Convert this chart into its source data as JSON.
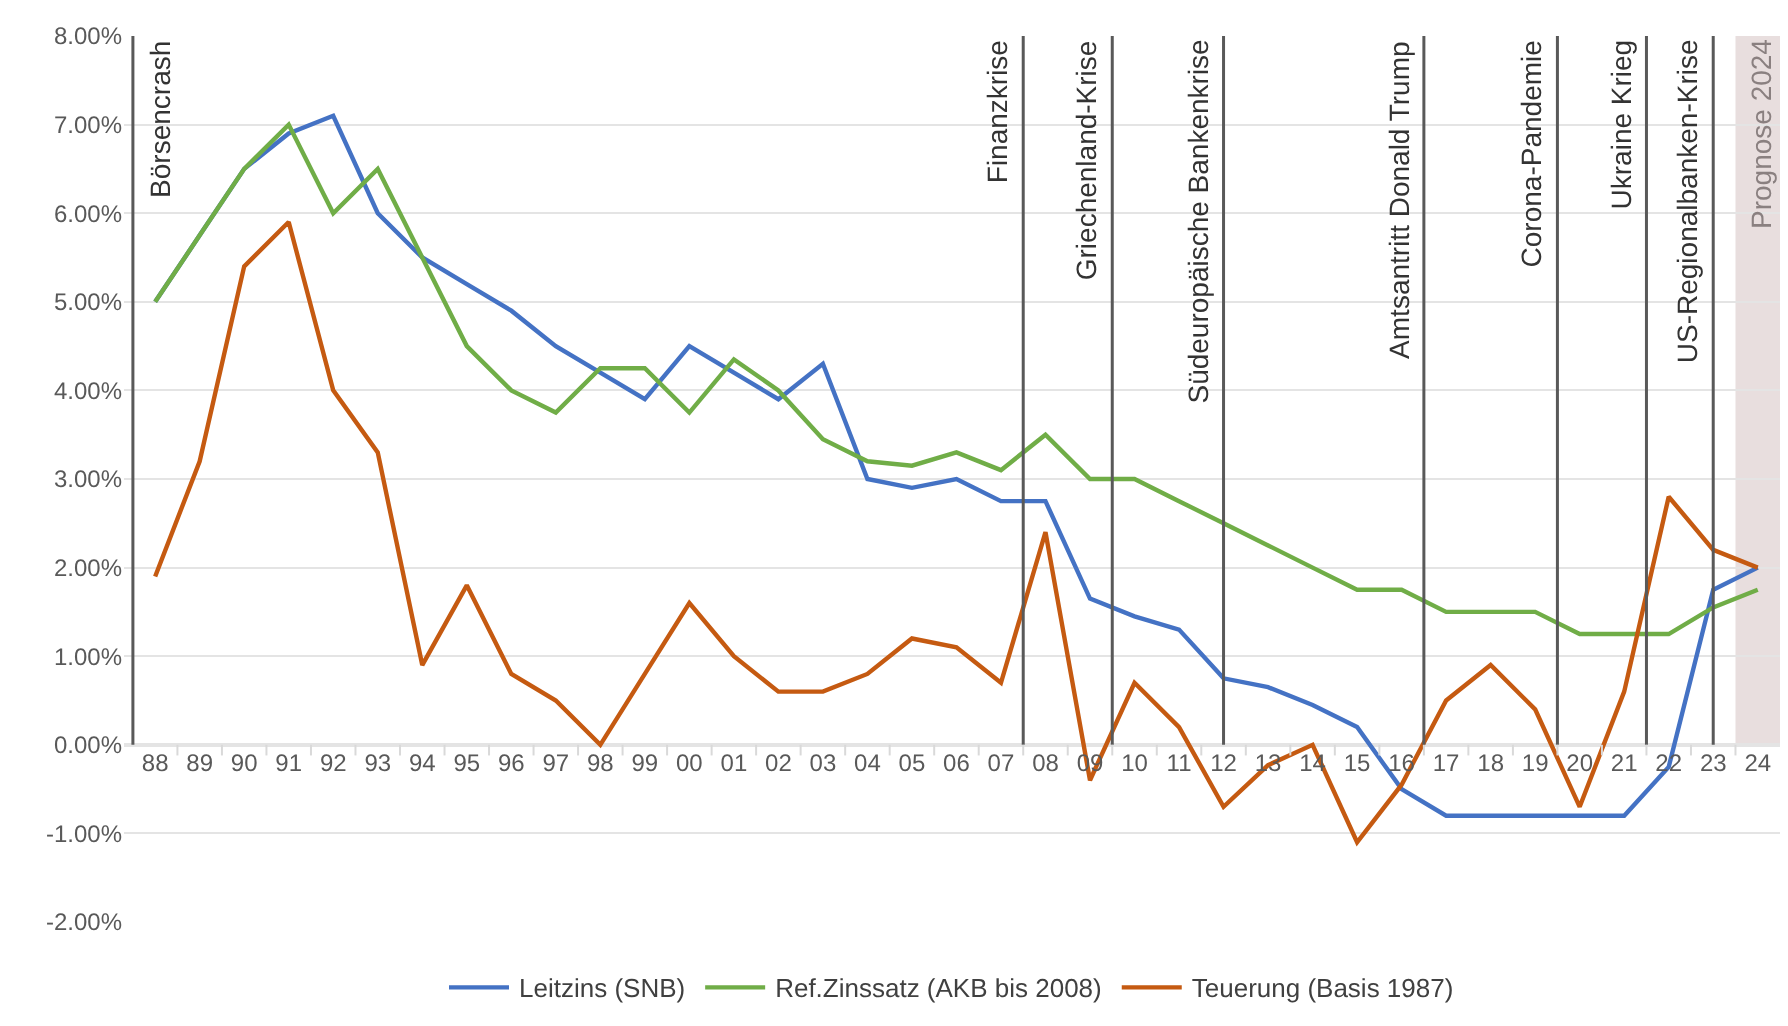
{
  "chart_data": {
    "type": "line",
    "x": [
      1988,
      1989,
      1990,
      1991,
      1992,
      1993,
      1994,
      1995,
      1996,
      1997,
      1998,
      1999,
      2000,
      2001,
      2002,
      2003,
      2004,
      2005,
      2006,
      2007,
      2008,
      2009,
      2010,
      2011,
      2012,
      2013,
      2014,
      2015,
      2016,
      2017,
      2018,
      2019,
      2020,
      2021,
      2022,
      2023,
      2024
    ],
    "series": [
      {
        "name": "Leitzins (SNB)",
        "color": "#4472c4",
        "values": [
          5.0,
          5.75,
          6.5,
          6.9,
          7.1,
          6.0,
          5.5,
          5.2,
          4.9,
          4.5,
          4.2,
          3.9,
          4.5,
          4.2,
          3.9,
          4.3,
          3.0,
          2.9,
          3.0,
          2.75,
          2.75,
          1.65,
          1.45,
          1.3,
          0.75,
          0.65,
          0.45,
          0.2,
          -0.5,
          -0.8,
          -0.8,
          -0.8,
          -0.8,
          -0.8,
          -0.25,
          1.75,
          2.0
        ]
      },
      {
        "name": "Ref.Zinssatz (AKB bis 2008)",
        "color": "#70ad47",
        "values": [
          5.0,
          5.75,
          6.5,
          7.0,
          6.0,
          6.5,
          5.5,
          4.5,
          4.0,
          3.75,
          4.25,
          4.25,
          3.75,
          4.35,
          4.0,
          3.45,
          3.2,
          3.15,
          3.3,
          3.1,
          3.5,
          3.0,
          3.0,
          2.75,
          2.5,
          2.25,
          2.0,
          1.75,
          1.75,
          1.5,
          1.5,
          1.5,
          1.25,
          1.25,
          1.25,
          1.55,
          1.75
        ]
      },
      {
        "name": "Teuerung (Basis 1987)",
        "color": "#c55a11",
        "values": [
          1.9,
          3.2,
          5.4,
          5.9,
          4.0,
          3.3,
          0.9,
          1.8,
          0.8,
          0.5,
          0.0,
          0.8,
          1.6,
          1.0,
          0.6,
          0.6,
          0.8,
          1.2,
          1.1,
          0.7,
          2.4,
          -0.4,
          0.7,
          0.2,
          -0.7,
          -0.23,
          0.0,
          -1.1,
          -0.45,
          0.5,
          0.9,
          0.4,
          -0.7,
          0.6,
          2.8,
          2.2,
          2.0
        ]
      }
    ],
    "xlim": [
      1987.3,
      2024.5
    ],
    "xticks": [
      {
        "value": 1988,
        "label": "88"
      },
      {
        "value": 1989,
        "label": "89"
      },
      {
        "value": 1990,
        "label": "90"
      },
      {
        "value": 1991,
        "label": "91"
      },
      {
        "value": 1992,
        "label": "92"
      },
      {
        "value": 1993,
        "label": "93"
      },
      {
        "value": 1994,
        "label": "94"
      },
      {
        "value": 1995,
        "label": "95"
      },
      {
        "value": 1996,
        "label": "96"
      },
      {
        "value": 1997,
        "label": "97"
      },
      {
        "value": 1998,
        "label": "98"
      },
      {
        "value": 1999,
        "label": "99"
      },
      {
        "value": 2000,
        "label": "00"
      },
      {
        "value": 2001,
        "label": "01"
      },
      {
        "value": 2002,
        "label": "02"
      },
      {
        "value": 2003,
        "label": "03"
      },
      {
        "value": 2004,
        "label": "04"
      },
      {
        "value": 2005,
        "label": "05"
      },
      {
        "value": 2006,
        "label": "06"
      },
      {
        "value": 2007,
        "label": "07"
      },
      {
        "value": 2008,
        "label": "08"
      },
      {
        "value": 2009,
        "label": "09"
      },
      {
        "value": 2010,
        "label": "10"
      },
      {
        "value": 2011,
        "label": "11"
      },
      {
        "value": 2012,
        "label": "12"
      },
      {
        "value": 2013,
        "label": "13"
      },
      {
        "value": 2014,
        "label": "14"
      },
      {
        "value": 2015,
        "label": "15"
      },
      {
        "value": 2016,
        "label": "16"
      },
      {
        "value": 2017,
        "label": "17"
      },
      {
        "value": 2018,
        "label": "18"
      },
      {
        "value": 2019,
        "label": "19"
      },
      {
        "value": 2020,
        "label": "20"
      },
      {
        "value": 2021,
        "label": "21"
      },
      {
        "value": 2022,
        "label": "22"
      },
      {
        "value": 2023,
        "label": "23"
      },
      {
        "value": 2024,
        "label": "24"
      },
      {
        "value": 1988.5,
        "label": null
      },
      {
        "value": 1989.5,
        "label": null
      },
      {
        "value": 1990.5,
        "label": null
      },
      {
        "value": 1991.5,
        "label": null
      },
      {
        "value": 1992.5,
        "label": null
      },
      {
        "value": 1993.5,
        "label": null
      },
      {
        "value": 1994.5,
        "label": null
      },
      {
        "value": 1995.5,
        "label": null
      },
      {
        "value": 1996.5,
        "label": null
      },
      {
        "value": 1997.5,
        "label": null
      },
      {
        "value": 1998.5,
        "label": null
      },
      {
        "value": 1999.5,
        "label": null
      },
      {
        "value": 2000.5,
        "label": null
      },
      {
        "value": 2001.5,
        "label": null
      },
      {
        "value": 2002.5,
        "label": null
      },
      {
        "value": 2003.5,
        "label": null
      },
      {
        "value": 2004.5,
        "label": null
      },
      {
        "value": 2005.5,
        "label": null
      },
      {
        "value": 2006.5,
        "label": null
      },
      {
        "value": 2007.5,
        "label": null
      },
      {
        "value": 2008.5,
        "label": null
      },
      {
        "value": 2009.5,
        "label": null
      },
      {
        "value": 2010.5,
        "label": null
      },
      {
        "value": 2011.5,
        "label": null
      },
      {
        "value": 2012.5,
        "label": null
      },
      {
        "value": 2013.5,
        "label": null
      },
      {
        "value": 2014.5,
        "label": null
      },
      {
        "value": 2015.5,
        "label": null
      },
      {
        "value": 2016.5,
        "label": null
      },
      {
        "value": 2017.5,
        "label": null
      },
      {
        "value": 2018.5,
        "label": null
      },
      {
        "value": 2019.5,
        "label": null
      },
      {
        "value": 2020.5,
        "label": null
      },
      {
        "value": 2021.5,
        "label": null
      },
      {
        "value": 2022.5,
        "label": null
      },
      {
        "value": 2023.5,
        "label": null
      }
    ],
    "ylim": [
      -2,
      8
    ],
    "yticks": [
      {
        "value": -2,
        "label": "-2.00%"
      },
      {
        "value": -1,
        "label": "-1.00%"
      },
      {
        "value": 0,
        "label": "0.00%"
      },
      {
        "value": 1,
        "label": "1.00%"
      },
      {
        "value": 2,
        "label": "2.00%"
      },
      {
        "value": 3,
        "label": "3.00%"
      },
      {
        "value": 4,
        "label": "4.00%"
      },
      {
        "value": 5,
        "label": "5.00%"
      },
      {
        "value": 6,
        "label": "6.00%"
      },
      {
        "value": 7,
        "label": "7.00%"
      },
      {
        "value": 8,
        "label": "8.00%"
      }
    ],
    "ref_lines": [
      {
        "axis": "x",
        "value": 1987.5,
        "label": "Börsencrash",
        "color": "#595959"
      },
      {
        "axis": "x",
        "value": 2007.5,
        "label": "Finanzkrise",
        "color": "#595959"
      },
      {
        "axis": "x",
        "value": 2009.5,
        "label": "Griechenland-Krise",
        "color": "#595959"
      },
      {
        "axis": "x",
        "value": 2012.0,
        "label": "Südeuropäische Bankenkrise",
        "color": "#595959"
      },
      {
        "axis": "x",
        "value": 2016.5,
        "label": "Amtsantritt Donald Trump",
        "color": "#595959"
      },
      {
        "axis": "x",
        "value": 2019.5,
        "label": "Corona-Pandemie",
        "color": "#595959"
      },
      {
        "axis": "x",
        "value": 2021.5,
        "label": "Ukraine Krieg",
        "color": "#595959"
      },
      {
        "axis": "x",
        "value": 2023.0,
        "label": "US-Regionalbanken-Krise",
        "color": "#595959"
      }
    ],
    "bands": [
      {
        "axis": "x",
        "from": 2023.5,
        "to": 2024.5,
        "label": "Prognose 2024",
        "color": "#e8dede"
      }
    ],
    "grid": "y",
    "legend": "bottom",
    "marker": "none",
    "line_style": "solid"
  }
}
